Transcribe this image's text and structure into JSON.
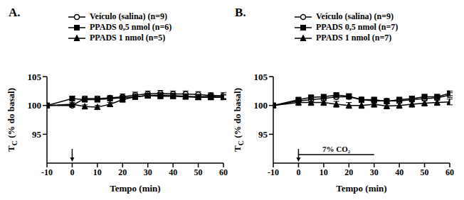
{
  "chart_data": [
    {
      "type": "line",
      "title": "A.",
      "x_label": "Tempo (min)",
      "y_label": "TC (% do basal)",
      "x": [
        -10,
        0,
        5,
        10,
        15,
        20,
        25,
        30,
        35,
        40,
        45,
        50,
        55,
        60
      ],
      "xlim": [
        -10,
        60
      ],
      "xticks": [
        -10,
        0,
        10,
        20,
        30,
        40,
        50,
        60
      ],
      "ylim": [
        90,
        105
      ],
      "yticks": [
        95,
        100,
        105
      ],
      "arrow_x": 0,
      "series": [
        {
          "name": "Veículo (salina) (n=9)",
          "color": "#000000",
          "marker": "circle_open",
          "values": [
            100,
            100,
            101.2,
            101.2,
            101.3,
            101.5,
            101.8,
            102,
            102.1,
            102,
            102,
            101.9,
            101.7,
            101.7
          ],
          "errors": [
            0,
            0.3,
            0.4,
            0.4,
            0.4,
            0.5,
            0.5,
            0.5,
            0.5,
            0.5,
            0.5,
            0.5,
            0.5,
            0.5
          ]
        },
        {
          "name": "PPADS 0,5 nmol (n=6)",
          "color": "#000000",
          "marker": "square",
          "values": [
            100,
            101.2,
            101,
            101,
            101.2,
            101.3,
            101.5,
            101.7,
            101.8,
            101.7,
            101.6,
            101.5,
            101.6,
            101.5
          ],
          "errors": [
            0,
            0.4,
            0.3,
            0.3,
            0.3,
            0.3,
            0.4,
            0.4,
            0.4,
            0.4,
            0.4,
            0.4,
            0.4,
            0.4
          ]
        },
        {
          "name": "PPADS 1 nmol (n=5)",
          "color": "#000000",
          "marker": "triangle",
          "values": [
            100,
            100.2,
            99.8,
            99.7,
            100.2,
            101,
            101.5,
            101.7,
            101.6,
            101.6,
            101.5,
            101.4,
            101.4,
            101.4
          ],
          "errors": [
            0,
            0.3,
            0.3,
            0.3,
            0.3,
            0.4,
            0.4,
            0.4,
            0.4,
            0.4,
            0.4,
            0.4,
            0.4,
            0.4
          ]
        }
      ]
    },
    {
      "type": "line",
      "title": "B.",
      "x_label": "Tempo (min)",
      "y_label": "TC (% do basal)",
      "x": [
        -10,
        0,
        5,
        10,
        15,
        20,
        25,
        30,
        35,
        40,
        45,
        50,
        55,
        60
      ],
      "xlim": [
        -10,
        60
      ],
      "xticks": [
        -10,
        0,
        10,
        20,
        30,
        40,
        50,
        60
      ],
      "ylim": [
        90,
        105
      ],
      "yticks": [
        95,
        100,
        105
      ],
      "arrow_x": 0,
      "annotations": [
        {
          "text": "7% CO₂",
          "x_start": 0,
          "x_end": 30
        }
      ],
      "series": [
        {
          "name": "Veículo (salina) (n=9)",
          "color": "#000000",
          "marker": "circle_open",
          "values": [
            100,
            100.8,
            101,
            101.2,
            101.5,
            101.5,
            101,
            100.8,
            100.8,
            100.8,
            101,
            101.2,
            101.3,
            101.8
          ],
          "errors": [
            0,
            0.3,
            0.4,
            0.4,
            0.4,
            0.4,
            0.4,
            0.4,
            0.4,
            0.4,
            0.4,
            0.4,
            0.4,
            0.4
          ]
        },
        {
          "name": "PPADS 0,5 nmol (n=7)",
          "color": "#000000",
          "marker": "square",
          "values": [
            100,
            101,
            101.4,
            101.5,
            101.8,
            101.6,
            101,
            101,
            100.7,
            101,
            101.2,
            101.5,
            101.5,
            102.1
          ],
          "errors": [
            0,
            0.3,
            0.3,
            0.3,
            0.3,
            0.4,
            0.4,
            0.4,
            0.4,
            0.4,
            0.4,
            0.4,
            0.4,
            0.4
          ]
        },
        {
          "name": "PPADS 1 nmol (n=7)",
          "color": "#000000",
          "marker": "triangle",
          "values": [
            100,
            100.5,
            100.5,
            100.5,
            100.2,
            100,
            100,
            100.2,
            99.9,
            100,
            100.2,
            100.4,
            100.5,
            100.6
          ],
          "errors": [
            0,
            0.5,
            0.5,
            0.5,
            0.5,
            0.5,
            0.5,
            0.5,
            0.5,
            0.5,
            0.5,
            0.5,
            0.5,
            0.5
          ]
        }
      ]
    }
  ]
}
